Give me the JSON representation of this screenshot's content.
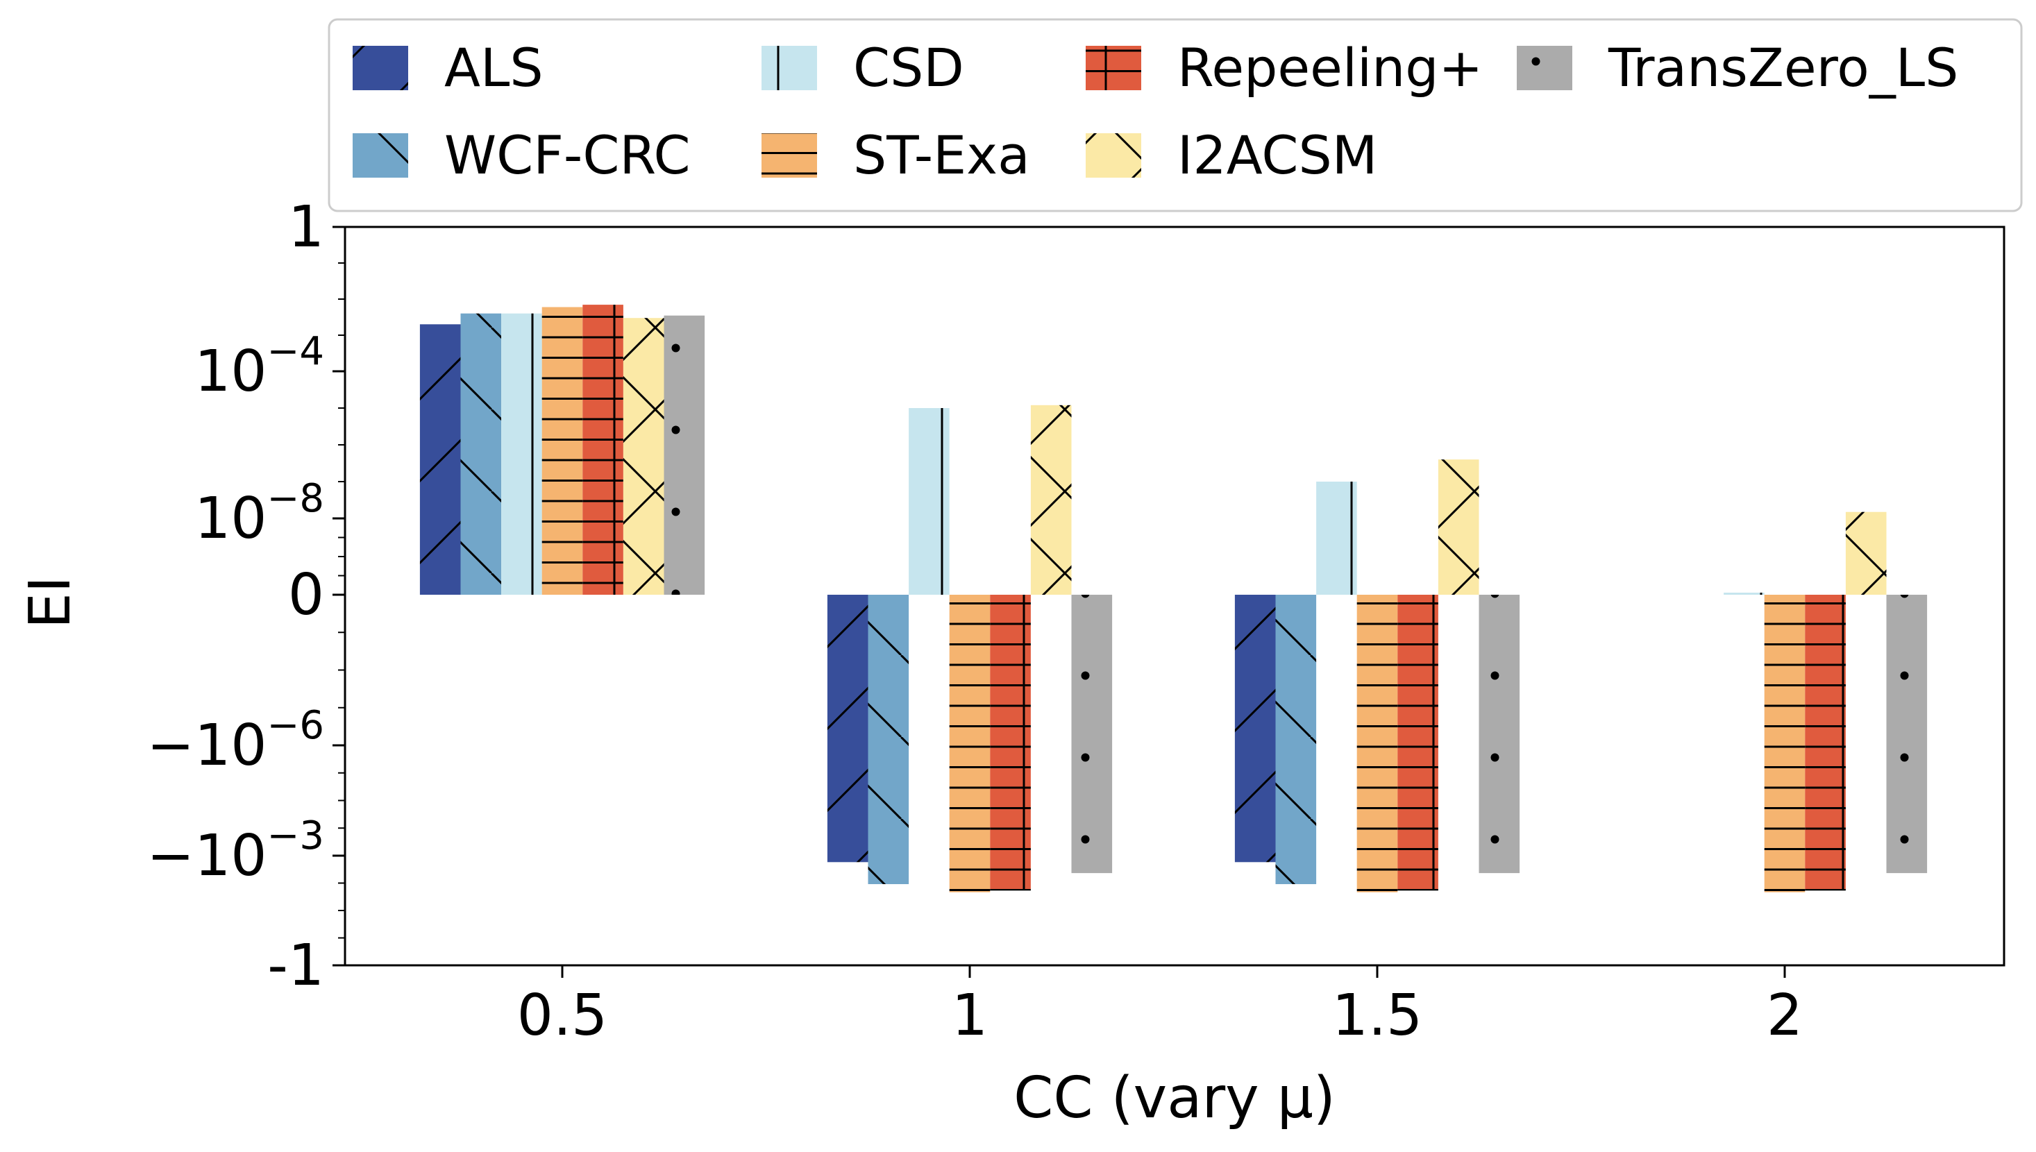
{
  "chart_data": {
    "type": "bar",
    "xlabel": "CC (vary μ)",
    "ylabel": "EI",
    "categories": [
      "0.5",
      "1",
      "1.5",
      "2"
    ],
    "ytick_labels": [
      "1",
      "10^-4",
      "10^-8",
      "0",
      "-10^-6",
      "-10^-3",
      "-1"
    ],
    "yscale": "symlog",
    "ylim": [
      -1,
      1
    ],
    "grid": false,
    "legend_position": "top, above plot",
    "series": [
      {
        "name": "ALS",
        "color": "#374e9a",
        "hatch": "diag-forward",
        "values": [
          0.002,
          -0.0015,
          -0.0015,
          null
        ]
      },
      {
        "name": "WCF-CRC",
        "color": "#72a6c9",
        "hatch": "diag-back",
        "values": [
          0.004,
          -0.006,
          -0.006,
          null
        ]
      },
      {
        "name": "CSD",
        "color": "#c6e5ee",
        "hatch": "vertical",
        "values": [
          0.004,
          1e-05,
          1e-07,
          1e-09
        ]
      },
      {
        "name": "ST-Exa",
        "color": "#f5b470",
        "hatch": "horizontal",
        "values": [
          0.006,
          -0.01,
          -0.01,
          -0.01
        ]
      },
      {
        "name": "Repeeling+",
        "color": "#e05b3e",
        "hatch": "plus",
        "values": [
          0.007,
          -0.009,
          -0.009,
          -0.009
        ]
      },
      {
        "name": "I2ACSM",
        "color": "#fbe9a6",
        "hatch": "cross",
        "values": [
          0.003,
          1.2e-05,
          4e-07,
          1.5e-08
        ]
      },
      {
        "name": "TransZero_LS",
        "color": "#ababab",
        "hatch": "dots",
        "values": [
          0.0035,
          -0.003,
          -0.003,
          -0.003
        ]
      }
    ]
  }
}
